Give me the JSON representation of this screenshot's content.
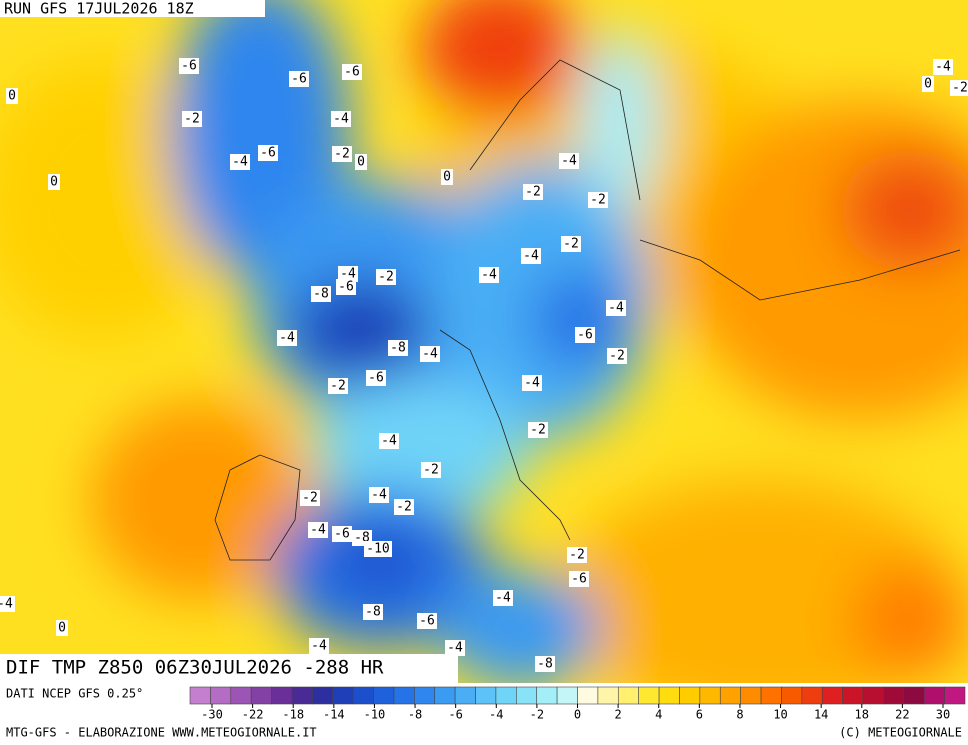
{
  "header": {
    "run": "RUN GFS 17JUL2026 18Z"
  },
  "map": {
    "title": "DIF TMP Z850 06Z30JUL2026 -288 HR",
    "contour_labels": [
      -6,
      -6,
      -6,
      -2,
      -4,
      0,
      -4,
      -6,
      -2,
      0,
      0,
      0,
      -4,
      -2,
      -2,
      -2,
      -4,
      -4,
      -4,
      -6,
      -2,
      -8,
      -4,
      -4,
      -6,
      -8,
      -4,
      -2,
      -6,
      -2,
      -4,
      -4,
      -2,
      -2,
      -2,
      -4,
      -2,
      -4,
      -6,
      -8,
      -10,
      -2,
      -6,
      -4,
      -8,
      -6,
      -4,
      -4,
      -8,
      0,
      -4,
      0,
      -2,
      -4
    ]
  },
  "colorbar": {
    "source": "DATI NCEP GFS 0.25°",
    "colors": [
      "#c57fcf",
      "#b46cc4",
      "#9d55b5",
      "#8441a5",
      "#6a2f98",
      "#4a2a94",
      "#2d2fa0",
      "#1f3fb8",
      "#1c4fcc",
      "#1f60dc",
      "#2573e6",
      "#2f86ee",
      "#3b9af2",
      "#4aaef5",
      "#5cc2f7",
      "#70d4f8",
      "#88e2f8",
      "#a4eef8",
      "#c4f6f8",
      "#fffbe0",
      "#fff5a8",
      "#fff070",
      "#ffe830",
      "#ffdc10",
      "#ffcc00",
      "#ffb800",
      "#ffa200",
      "#ff8c00",
      "#ff7200",
      "#f85a00",
      "#ee3e10",
      "#e02020",
      "#cc1428",
      "#b80e30",
      "#a00a38",
      "#8c0a40",
      "#b0106c",
      "#c01880"
    ],
    "ticks": [
      -30,
      -22,
      -18,
      -14,
      -10,
      -8,
      -6,
      -4,
      -2,
      0,
      2,
      4,
      6,
      8,
      10,
      14,
      18,
      22,
      30
    ]
  },
  "footer": {
    "left": "MTG-GFS - ELABORAZIONE WWW.METEOGIORNALE.IT",
    "right": "(C) METEOGIORNALE"
  }
}
